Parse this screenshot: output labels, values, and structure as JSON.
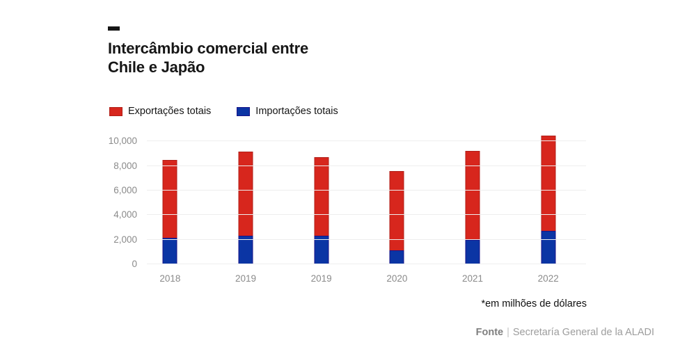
{
  "header": {
    "title_line1": "Intercâmbio comercial entre",
    "title_line2": "Chile e Japão"
  },
  "footer": {
    "note": "*em milhões de dólares",
    "source_label": "Fonte",
    "source_separator": "|",
    "source_text": "Secretaría General de la ALADI"
  },
  "chart_data": {
    "type": "bar",
    "stacked": true,
    "title": "Intercâmbio comercial entre Chile e Japão",
    "unit": "milhões de dólares",
    "categories": [
      "2018",
      "2019",
      "2019",
      "2020",
      "2021",
      "2022"
    ],
    "series": [
      {
        "name": "Exportações totais",
        "color": "#d7261d",
        "border_color": "#b01f18",
        "values": [
          6350,
          6850,
          6400,
          6450,
          7250,
          7800
        ]
      },
      {
        "name": "Importações totais",
        "color": "#0b35a4",
        "border_color": "#171389",
        "values": [
          2150,
          2350,
          2350,
          1150,
          2000,
          2700
        ]
      }
    ],
    "totals": [
      8500,
      9200,
      8750,
      7600,
      9250,
      10500
    ],
    "stack_order_bottom_to_top": [
      "Importações totais",
      "Exportações totais"
    ],
    "ylim": [
      0,
      10000
    ],
    "y_tick_values": [
      10000,
      8000,
      6000,
      4000,
      2000,
      0
    ],
    "y_tick_labels": [
      "10,000",
      "8,000",
      "6,000",
      "4,000",
      "2,000",
      "0"
    ],
    "grid": true,
    "legend_position": "top-left"
  }
}
